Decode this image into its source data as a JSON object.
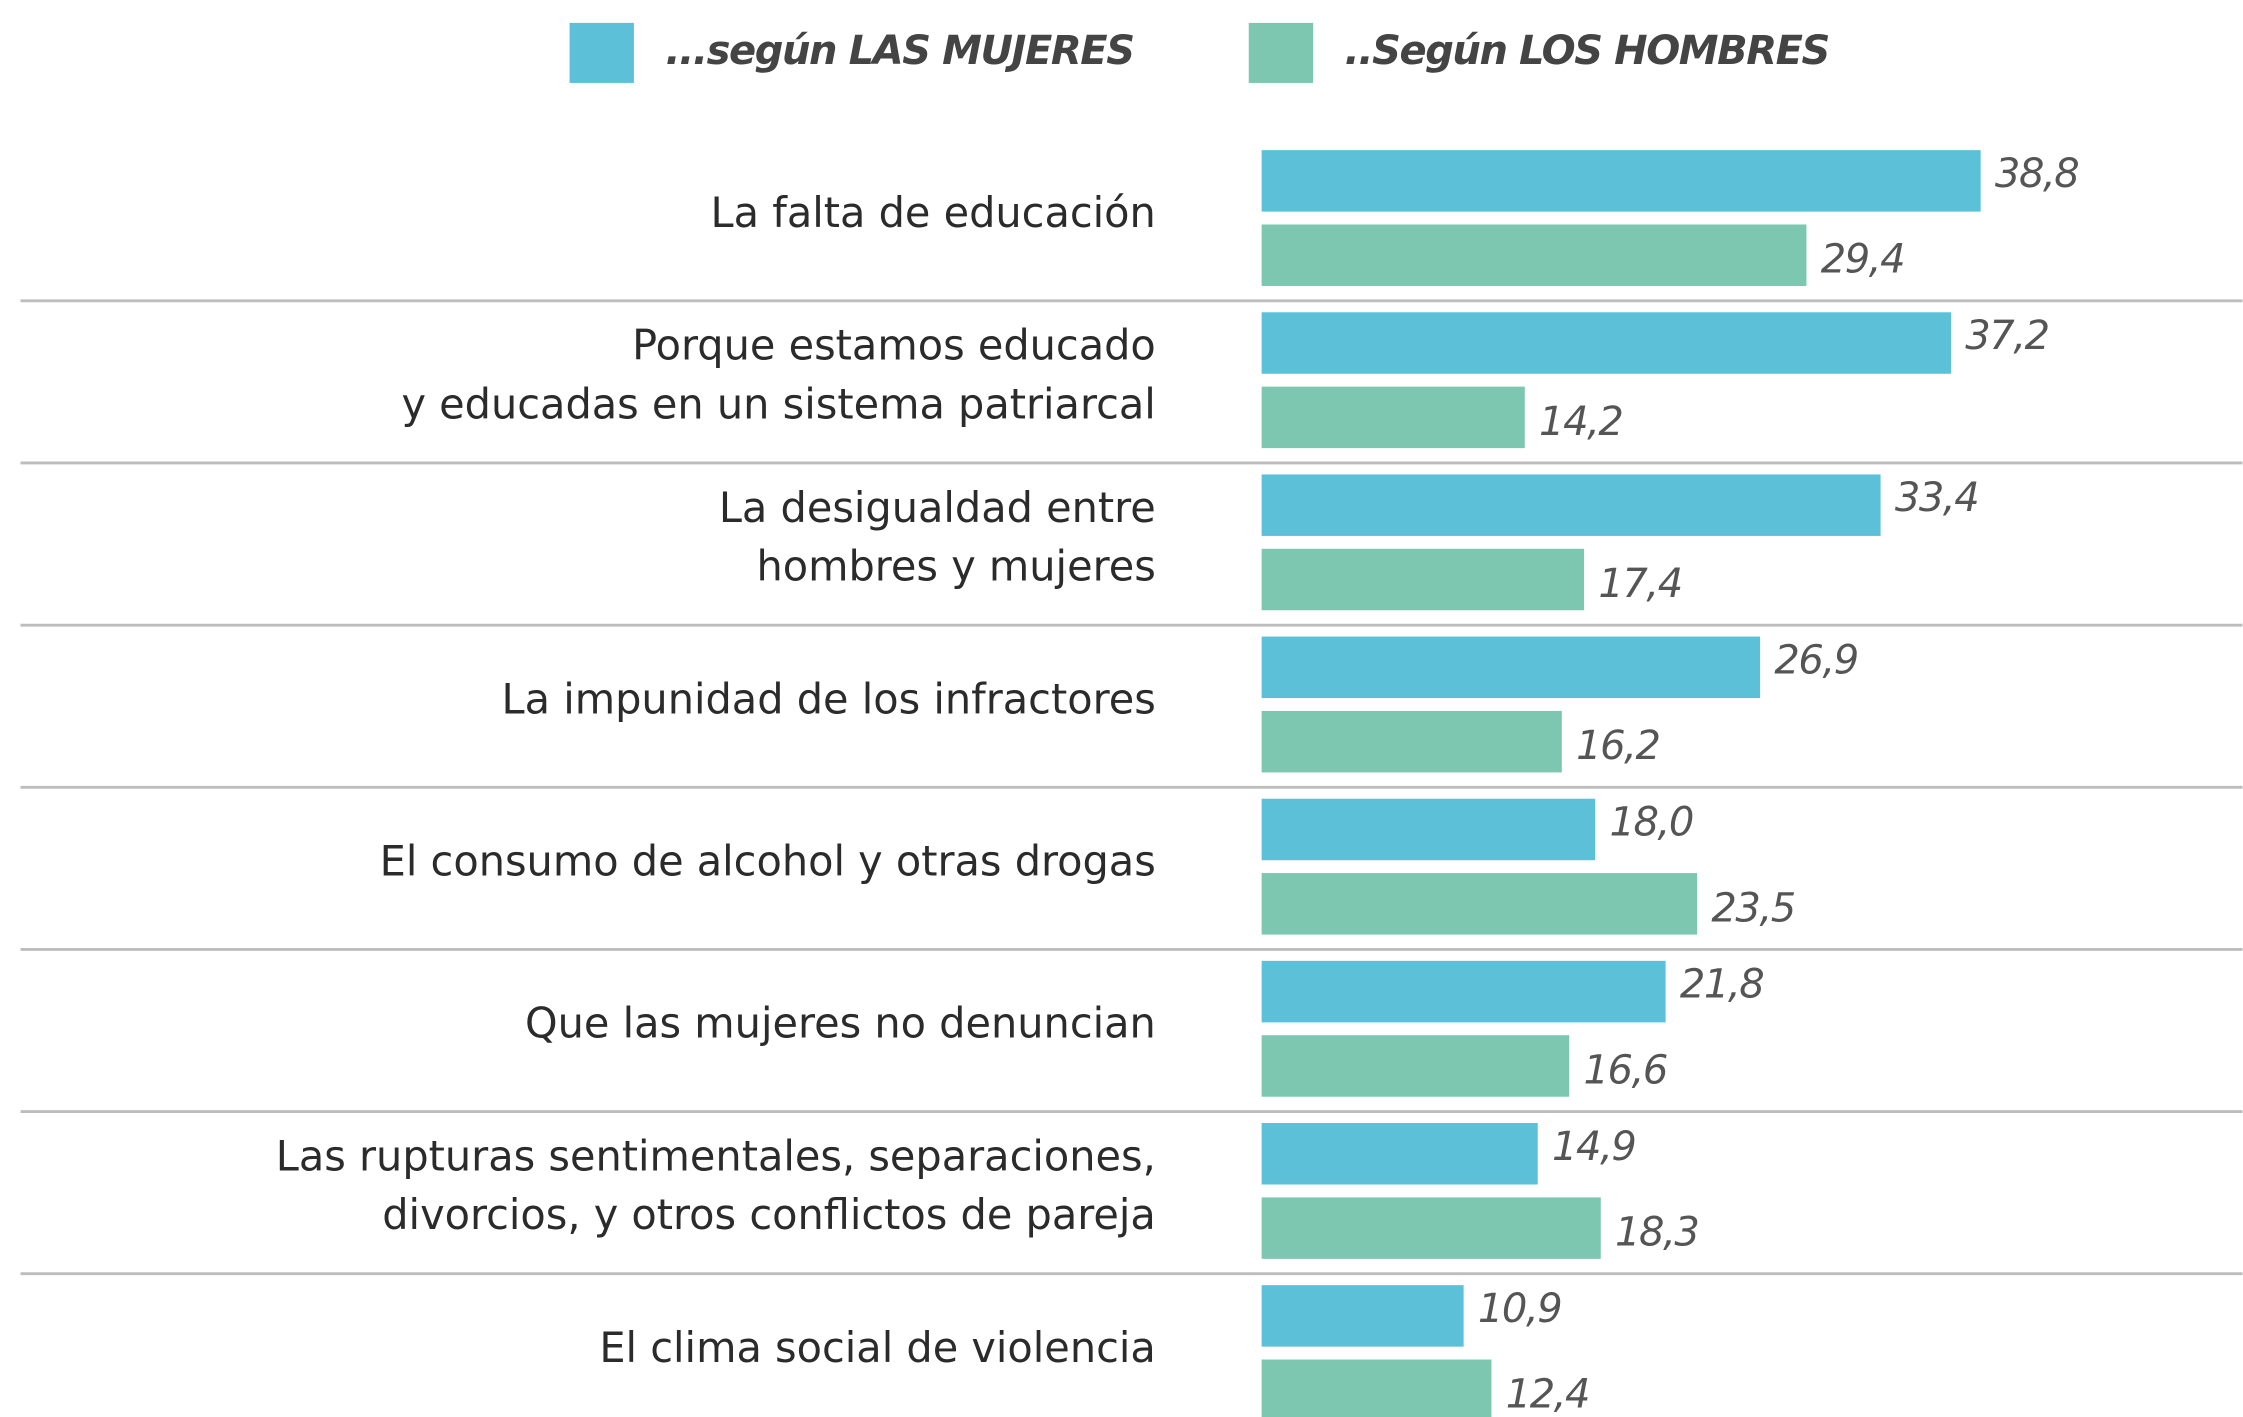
{
  "chart_data": {
    "type": "bar",
    "orientation": "horizontal",
    "categories": [
      [
        "La falta de educación"
      ],
      [
        "Porque estamos educado",
        "y educadas en un sistema patriarcal"
      ],
      [
        "La desigualdad entre",
        "hombres y mujeres"
      ],
      [
        "La impunidad de los infractores"
      ],
      [
        "El consumo de alcohol y otras drogas"
      ],
      [
        "Que las mujeres no denuncian"
      ],
      [
        "Las rupturas sentimentales, separaciones,",
        "divorcios, y otros conflictos de pareja"
      ],
      [
        "El clima social de violencia"
      ]
    ],
    "series": [
      {
        "name": "...según LAS MUJERES",
        "color": "#5bc0d8",
        "values": [
          38.8,
          37.2,
          33.4,
          26.9,
          18.0,
          21.8,
          14.9,
          10.9
        ],
        "value_labels": [
          "38,8",
          "37,2",
          "33,4",
          "26,9",
          "18,0",
          "21,8",
          "14,9",
          "10,9"
        ]
      },
      {
        "name": "..Según LOS HOMBRES",
        "color": "#7dc6b0",
        "values": [
          29.4,
          14.2,
          17.4,
          16.2,
          23.5,
          16.6,
          18.3,
          12.4
        ],
        "value_labels": [
          "29,4",
          "14,2",
          "17,4",
          "16,2",
          "23,5",
          "16,6",
          "18,3",
          "12,4"
        ]
      }
    ]
  }
}
